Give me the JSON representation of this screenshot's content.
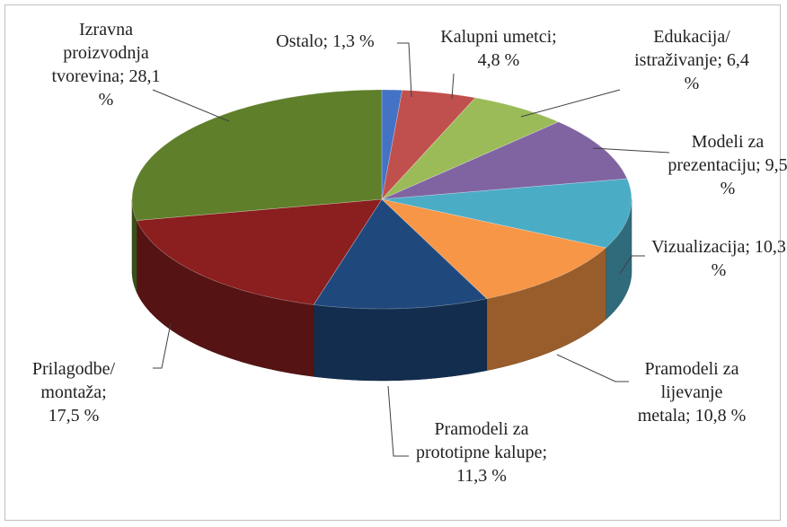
{
  "chart_data": {
    "type": "pie3d",
    "categories": [
      "Ostalo",
      "Kalupni umetci",
      "Edukacija/ istraživanje",
      "Modeli za prezentaciju",
      "Vizualizacija",
      "Pramodeli za lijevanje metala",
      "Pramodeli za prototipne kalupe",
      "Prilagodbe/ montaža",
      "Izravna proizvodnja tvorevina"
    ],
    "values": [
      1.3,
      4.8,
      6.4,
      9.5,
      10.3,
      10.8,
      11.3,
      17.5,
      28.1
    ],
    "value_labels": [
      "1,3 %",
      "4,8 %",
      "6,4 %",
      "9,5 %",
      "10,3 %",
      "10,8 %",
      "11,3 %",
      "17,5 %",
      "28,1 %"
    ],
    "separator": ";",
    "colors": [
      "#4472c4",
      "#c0504d",
      "#9bbb59",
      "#8064a2",
      "#4bacc6",
      "#f79646",
      "#1f497d",
      "#8b1e1e",
      "#5f7f2a"
    ]
  }
}
